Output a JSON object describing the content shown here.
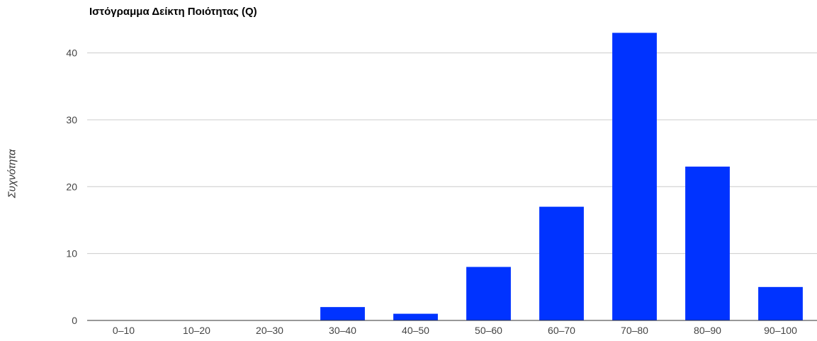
{
  "chart_data": {
    "type": "bar",
    "title": "Ιστόγραμμα Δείκτη Ποιότητας (Q)",
    "xlabel": "",
    "ylabel": "Συχνότητα",
    "categories": [
      "0–10",
      "10–20",
      "20–30",
      "30–40",
      "40–50",
      "50–60",
      "60–70",
      "70–80",
      "80–90",
      "90–100"
    ],
    "values": [
      0,
      0,
      0,
      2,
      1,
      8,
      17,
      43,
      23,
      5
    ],
    "ylim": [
      0,
      46
    ],
    "yticks": [
      0,
      10,
      20,
      30,
      40
    ],
    "grid": true,
    "legend": "none",
    "colors": {
      "bar": "#0033ff",
      "grid": "#cccccc",
      "axis": "#333333",
      "tick_text": "#444444"
    }
  }
}
